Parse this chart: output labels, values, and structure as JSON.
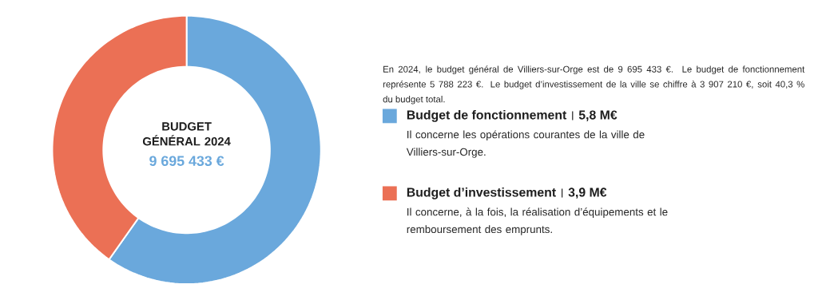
{
  "chart_data": {
    "type": "donut",
    "title": "BUDGET GÉNÉRAL 2024",
    "subtitle": "9 695 433 €",
    "categories": [
      "Budget de fonctionnement",
      "Budget d’investissement"
    ],
    "values": [
      5.8,
      3.9
    ],
    "value_labels": [
      "5,8 M€",
      "3,9 M€"
    ],
    "colors": [
      "#6aa8dc",
      "#eb7055"
    ],
    "legend": "right",
    "annotations": [
      "En 2024, le budget général de Villiers-sur-Orge est de 9 695 433 €. Le budget de fonctionnement représente 5 788 223 €. Le budget d’investissement de la ville se chiffre à 3 907 210 €, soit 40,3 % du budget total.",
      "Il concerne les opérations courantes de la ville de Villiers-sur-Orge.",
      "Il concerne, à la fois, la réalisation d’équipements et le remboursement des emprunts."
    ]
  }
}
